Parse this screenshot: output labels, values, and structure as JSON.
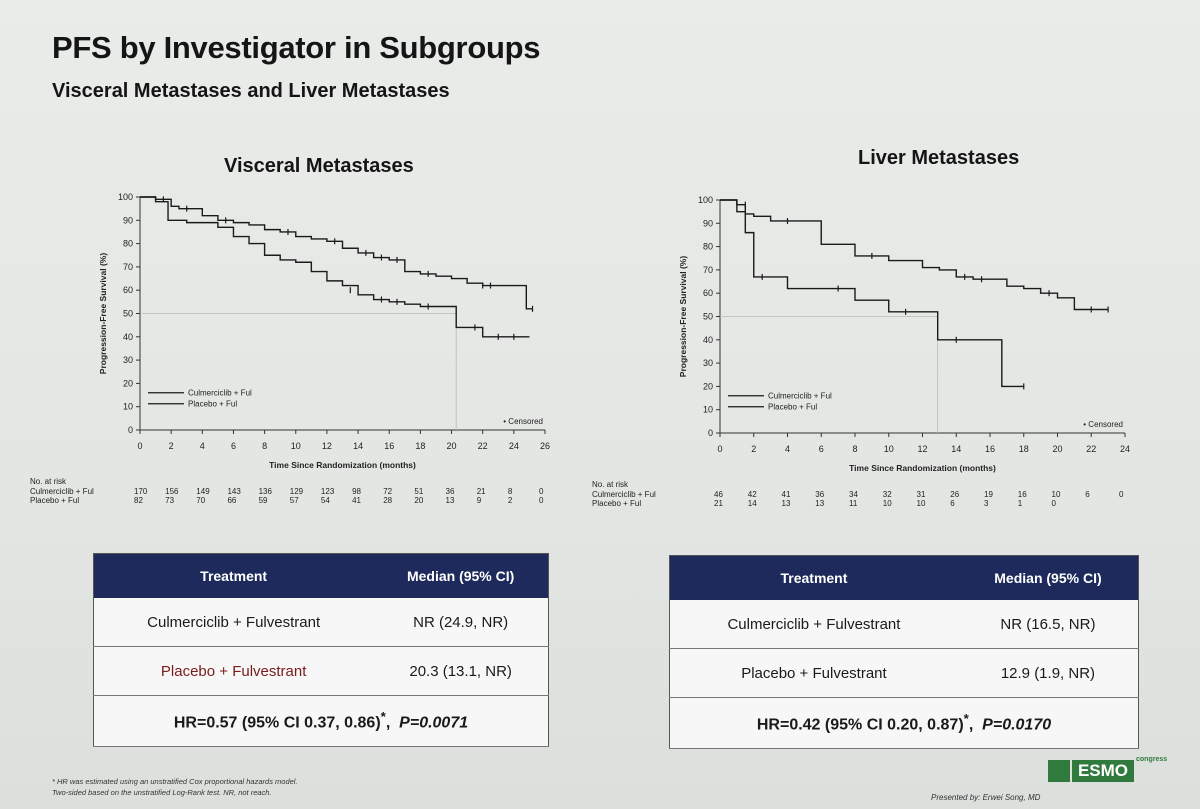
{
  "slide": {
    "title": "PFS by Investigator in Subgroups",
    "subtitle": "Visceral Metastases and Liver Metastases",
    "footnote_1": "* HR was estimated using an unstratified Cox proportional hazards model.",
    "footnote_2": "Two-sided based on the unstratified Log-Rank test. NR, not reach.",
    "presenter": "Presented by: Erwei Song, MD",
    "logo_text": "ESMO",
    "logo_sub": "congress"
  },
  "chart_data": [
    {
      "type": "line",
      "title": "Visceral Metastases",
      "xlabel": "Time Since Randomization (months)",
      "ylabel": "Progression-Free Survival (%)",
      "xlim": [
        0,
        26
      ],
      "ylim": [
        0,
        100
      ],
      "x_ticks": [
        0,
        2,
        4,
        6,
        8,
        10,
        12,
        14,
        16,
        18,
        20,
        22,
        24,
        26
      ],
      "y_ticks": [
        0,
        10,
        20,
        30,
        40,
        50,
        60,
        70,
        80,
        90,
        100
      ],
      "censored_label": "• Censored",
      "median_ref_x": 20.3,
      "series": [
        {
          "name": "Culmerciclib + Ful",
          "points": [
            [
              0,
              100
            ],
            [
              1,
              99
            ],
            [
              2,
              96
            ],
            [
              2.5,
              95
            ],
            [
              4,
              92
            ],
            [
              5,
              90
            ],
            [
              6,
              89
            ],
            [
              7,
              88
            ],
            [
              8,
              86
            ],
            [
              9,
              85
            ],
            [
              10,
              83
            ],
            [
              11,
              82
            ],
            [
              12,
              81
            ],
            [
              13,
              78
            ],
            [
              14,
              76
            ],
            [
              15,
              74
            ],
            [
              16,
              73
            ],
            [
              17,
              68
            ],
            [
              18,
              67
            ],
            [
              19,
              66
            ],
            [
              20,
              65
            ],
            [
              21,
              63
            ],
            [
              22,
              62
            ],
            [
              23,
              62
            ],
            [
              24.5,
              62
            ],
            [
              24.8,
              52
            ],
            [
              25.2,
              52
            ]
          ],
          "censors": [
            [
              1.5,
              99
            ],
            [
              3,
              95
            ],
            [
              5.5,
              90
            ],
            [
              9.5,
              85
            ],
            [
              12.5,
              81
            ],
            [
              14.5,
              76
            ],
            [
              15.5,
              74
            ],
            [
              16.5,
              73
            ],
            [
              18.5,
              67
            ],
            [
              22,
              62
            ],
            [
              22.5,
              62
            ],
            [
              25.2,
              52
            ]
          ]
        },
        {
          "name": "Placebo + Ful",
          "points": [
            [
              0,
              100
            ],
            [
              1,
              98
            ],
            [
              1.8,
              90
            ],
            [
              3,
              89
            ],
            [
              5,
              87
            ],
            [
              6,
              83
            ],
            [
              7,
              80
            ],
            [
              8,
              75
            ],
            [
              9,
              73
            ],
            [
              10,
              72
            ],
            [
              11,
              68
            ],
            [
              12,
              64
            ],
            [
              13,
              62
            ],
            [
              14,
              58
            ],
            [
              15,
              56
            ],
            [
              16,
              55
            ],
            [
              17,
              54
            ],
            [
              18,
              53
            ],
            [
              19,
              53
            ],
            [
              20,
              53
            ],
            [
              20.3,
              44
            ],
            [
              21,
              44
            ],
            [
              22,
              40
            ],
            [
              25,
              40
            ]
          ],
          "censors": [
            [
              13.5,
              60
            ],
            [
              15.5,
              56
            ],
            [
              16.5,
              55
            ],
            [
              18.5,
              53
            ],
            [
              21.5,
              44
            ],
            [
              23,
              40
            ],
            [
              24,
              40
            ]
          ]
        }
      ],
      "risk_table": {
        "header": "No. at risk",
        "rows": [
          {
            "label": "Culmerciclib + Ful",
            "values": [
              "170",
              "156",
              "149",
              "143",
              "136",
              "129",
              "123",
              "98",
              "72",
              "51",
              "36",
              "21",
              "8",
              "0"
            ]
          },
          {
            "label": "Placebo + Ful",
            "values": [
              "82",
              "73",
              "70",
              "66",
              "59",
              "57",
              "54",
              "41",
              "28",
              "20",
              "13",
              "9",
              "2",
              "0"
            ]
          }
        ]
      }
    },
    {
      "type": "line",
      "title": "Liver Metastases",
      "xlabel": "Time Since Randomization (months)",
      "ylabel": "Progression-Free Survival (%)",
      "xlim": [
        0,
        24
      ],
      "ylim": [
        0,
        100
      ],
      "x_ticks": [
        0,
        2,
        4,
        6,
        8,
        10,
        12,
        14,
        16,
        18,
        20,
        22,
        24
      ],
      "y_ticks": [
        0,
        10,
        20,
        30,
        40,
        50,
        60,
        70,
        80,
        90,
        100
      ],
      "censored_label": "• Censored",
      "median_ref_x": 12.9,
      "series": [
        {
          "name": "Culmerciclib + Ful",
          "points": [
            [
              0,
              100
            ],
            [
              1,
              98
            ],
            [
              1.5,
              94
            ],
            [
              2,
              93
            ],
            [
              3,
              91
            ],
            [
              5,
              91
            ],
            [
              6,
              81
            ],
            [
              8,
              76
            ],
            [
              10,
              74
            ],
            [
              12,
              71
            ],
            [
              13,
              70
            ],
            [
              14,
              67
            ],
            [
              15,
              66
            ],
            [
              16,
              66
            ],
            [
              17,
              63
            ],
            [
              18,
              62
            ],
            [
              19,
              60
            ],
            [
              20,
              58
            ],
            [
              21,
              53
            ],
            [
              23,
              53
            ]
          ],
          "censors": [
            [
              1.5,
              98
            ],
            [
              4,
              91
            ],
            [
              9,
              76
            ],
            [
              14.5,
              67
            ],
            [
              15.5,
              66
            ],
            [
              19.5,
              60
            ],
            [
              22,
              53
            ],
            [
              23,
              53
            ]
          ]
        },
        {
          "name": "Placebo + Ful",
          "points": [
            [
              0,
              100
            ],
            [
              1,
              95
            ],
            [
              1.5,
              86
            ],
            [
              2,
              67
            ],
            [
              3,
              67
            ],
            [
              4,
              62
            ],
            [
              6,
              62
            ],
            [
              8,
              57
            ],
            [
              10,
              52
            ],
            [
              12.9,
              52
            ],
            [
              12.9,
              40
            ],
            [
              16,
              40
            ],
            [
              16.7,
              20
            ],
            [
              18,
              20
            ]
          ],
          "censors": [
            [
              2.5,
              67
            ],
            [
              7,
              62
            ],
            [
              11,
              52
            ],
            [
              14,
              40
            ],
            [
              18,
              20
            ]
          ]
        }
      ],
      "risk_table": {
        "header": "No. at risk",
        "rows": [
          {
            "label": "Culmerciclib + Ful",
            "values": [
              "46",
              "42",
              "41",
              "36",
              "34",
              "32",
              "31",
              "26",
              "19",
              "16",
              "10",
              "6",
              "0"
            ]
          },
          {
            "label": "Placebo + Ful",
            "values": [
              "21",
              "14",
              "13",
              "13",
              "11",
              "10",
              "10",
              "6",
              "3",
              "1",
              "0"
            ]
          }
        ]
      }
    }
  ],
  "tables": [
    {
      "col_treatment": "Treatment",
      "col_median": "Median (95% CI)",
      "rows": [
        {
          "treatment": "Culmerciclib + Fulvestrant",
          "median": "NR (24.9, NR)"
        },
        {
          "treatment": "Placebo + Fulvestrant",
          "median": "20.3 (13.1, NR)"
        }
      ],
      "hr_text": "HR=0.57 (95% CI 0.37, 0.86)",
      "hr_sup": "*",
      "p_label": "P=0.0071"
    },
    {
      "col_treatment": "Treatment",
      "col_median": "Median (95% CI)",
      "rows": [
        {
          "treatment": "Culmerciclib + Fulvestrant",
          "median": "NR (16.5, NR)"
        },
        {
          "treatment": "Placebo + Fulvestrant",
          "median": "12.9 (1.9, NR)"
        }
      ],
      "hr_text": "HR=0.42 (95% CI 0.20, 0.87)",
      "hr_sup": "*",
      "p_label": "P=0.0170"
    }
  ]
}
